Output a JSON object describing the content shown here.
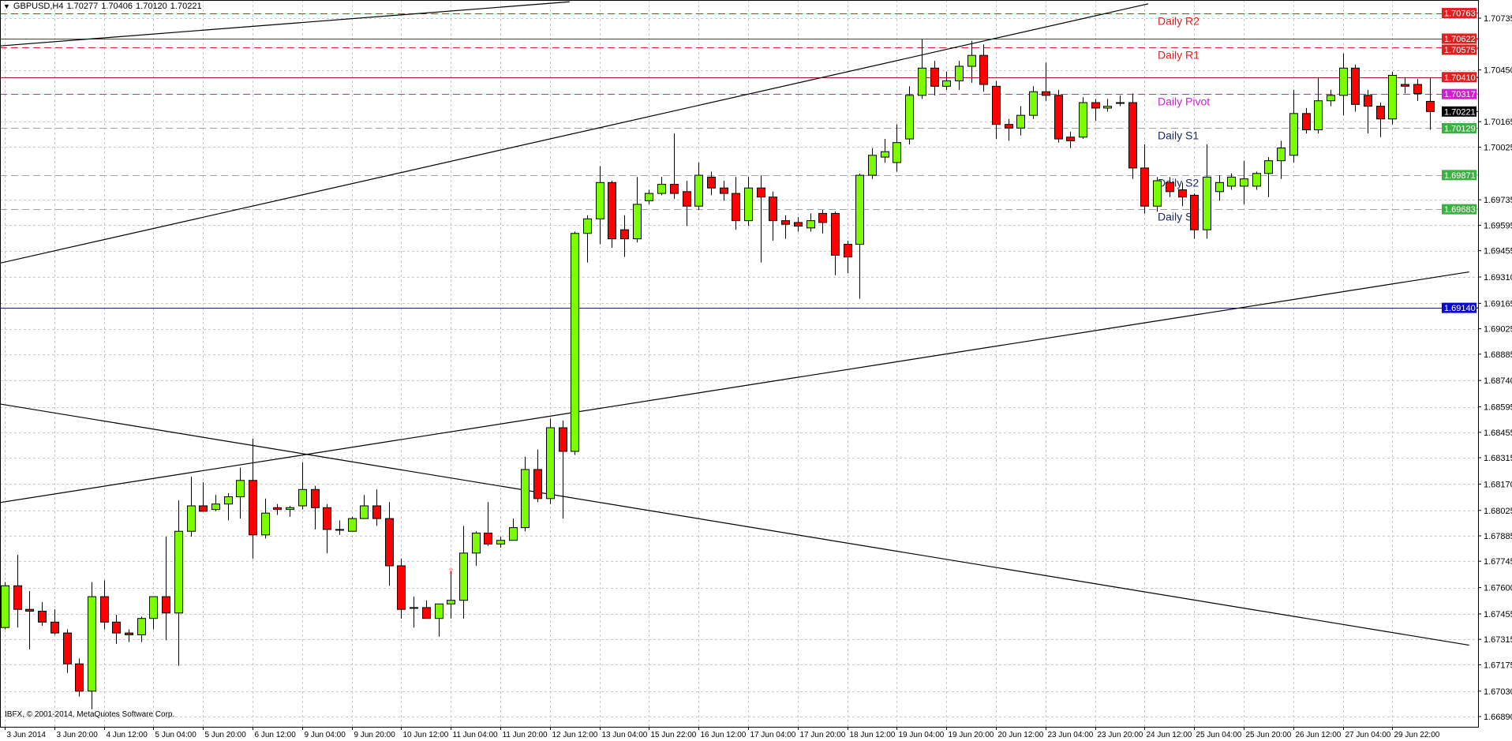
{
  "header": {
    "menu_icon": "triangle-down-icon",
    "symbol": "GBPUSD,H4",
    "open": "1.70277",
    "high": "1.70406",
    "low": "1.70120",
    "close": "1.70221"
  },
  "copyright": "IBFX, © 2001-2014, MetaQuotes Software Corp.",
  "colors": {
    "bull": "#7cfc00",
    "bear": "#ff0000",
    "resistance": "#e02020",
    "pivot": "#d020d0",
    "support_text": "#1a2a6c",
    "support_tag": "#3cb043",
    "blue_level": "#0a0ac8",
    "grid": "#c8c8c8"
  },
  "chart_data": {
    "type": "candlestick",
    "symbol": "GBPUSD",
    "timeframe": "H4",
    "ylim": [
      1.6684,
      1.7083
    ],
    "grid": true,
    "y_ticks": [
      "1.70735",
      "1.70450",
      "1.70165",
      "1.70025",
      "1.69735",
      "1.69595",
      "1.69455",
      "1.69310",
      "1.69165",
      "1.69025",
      "1.68885",
      "1.68740",
      "1.68595",
      "1.68455",
      "1.68315",
      "1.68170",
      "1.68025",
      "1.67885",
      "1.67745",
      "1.67600",
      "1.67455",
      "1.67315",
      "1.67175",
      "1.67030",
      "1.66890"
    ],
    "x_ticks": [
      "3 Jun 2014",
      "3 Jun 20:00",
      "4 Jun 12:00",
      "5 Jun 04:00",
      "5 Jun 20:00",
      "6 Jun 12:00",
      "9 Jun 04:00",
      "9 Jun 20:00",
      "10 Jun 12:00",
      "11 Jun 04:00",
      "11 Jun 20:00",
      "12 Jun 12:00",
      "13 Jun 04:00",
      "15 Jun 22:00",
      "16 Jun 12:00",
      "17 Jun 04:00",
      "17 Jun 20:00",
      "18 Jun 12:00",
      "19 Jun 04:00",
      "19 Jun 20:00",
      "20 Jun 12:00",
      "23 Jun 04:00",
      "23 Jun 20:00",
      "24 Jun 12:00",
      "25 Jun 04:00",
      "25 Jun 20:00",
      "26 Jun 12:00",
      "27 Jun 04:00",
      "29 Jun 22:00"
    ],
    "ohlc_fields": [
      "open",
      "high",
      "low",
      "close"
    ],
    "ohlc": [
      [
        1.6738,
        1.6763,
        1.6737,
        1.6761
      ],
      [
        1.6761,
        1.6778,
        1.6738,
        1.6748
      ],
      [
        1.6748,
        1.6758,
        1.6726,
        1.6747
      ],
      [
        1.6747,
        1.6752,
        1.6739,
        1.6741
      ],
      [
        1.6741,
        1.6748,
        1.6734,
        1.6735
      ],
      [
        1.6735,
        1.6737,
        1.6713,
        1.6718
      ],
      [
        1.6718,
        1.6721,
        1.67,
        1.6703
      ],
      [
        1.6703,
        1.6763,
        1.6693,
        1.6755
      ],
      [
        1.6755,
        1.6764,
        1.6737,
        1.6741
      ],
      [
        1.6741,
        1.6745,
        1.6729,
        1.6735
      ],
      [
        1.6735,
        1.6737,
        1.673,
        1.6734
      ],
      [
        1.6734,
        1.6744,
        1.673,
        1.6743
      ],
      [
        1.6743,
        1.6755,
        1.6737,
        1.6755
      ],
      [
        1.6755,
        1.6788,
        1.6731,
        1.6746
      ],
      [
        1.6746,
        1.6808,
        1.6717,
        1.6791
      ],
      [
        1.6791,
        1.6821,
        1.6788,
        1.6805
      ],
      [
        1.6805,
        1.6818,
        1.6802,
        1.6802
      ],
      [
        1.6803,
        1.6811,
        1.6802,
        1.6806
      ],
      [
        1.6806,
        1.6812,
        1.6797,
        1.681
      ],
      [
        1.681,
        1.6826,
        1.6798,
        1.6819
      ],
      [
        1.6819,
        1.6842,
        1.6776,
        1.6789
      ],
      [
        1.6789,
        1.6809,
        1.6787,
        1.6801
      ],
      [
        1.6804,
        1.6806,
        1.68,
        1.6803
      ],
      [
        1.6803,
        1.6805,
        1.6799,
        1.6804
      ],
      [
        1.6805,
        1.6829,
        1.6803,
        1.6814
      ],
      [
        1.6814,
        1.6816,
        1.6792,
        1.6804
      ],
      [
        1.6804,
        1.6806,
        1.6779,
        1.6792
      ],
      [
        1.6792,
        1.6797,
        1.6789,
        1.6792
      ],
      [
        1.6791,
        1.6799,
        1.6791,
        1.6798
      ],
      [
        1.6798,
        1.6811,
        1.6798,
        1.6805
      ],
      [
        1.6805,
        1.6814,
        1.6794,
        1.6798
      ],
      [
        1.6798,
        1.6807,
        1.6761,
        1.6772
      ],
      [
        1.6772,
        1.6776,
        1.6743,
        1.6748
      ],
      [
        1.6749,
        1.6755,
        1.6738,
        1.6749
      ],
      [
        1.6749,
        1.6753,
        1.6743,
        1.6743
      ],
      [
        1.6743,
        1.6751,
        1.6733,
        1.6751
      ],
      [
        1.6751,
        1.6769,
        1.6743,
        1.6753
      ],
      [
        1.6753,
        1.6794,
        1.6743,
        1.6779
      ],
      [
        1.6779,
        1.6791,
        1.6772,
        1.679
      ],
      [
        1.679,
        1.6807,
        1.6783,
        1.6784
      ],
      [
        1.6784,
        1.6788,
        1.6782,
        1.6786
      ],
      [
        1.6786,
        1.6798,
        1.6786,
        1.6793
      ],
      [
        1.6793,
        1.6832,
        1.6791,
        1.6825
      ],
      [
        1.6825,
        1.6836,
        1.6807,
        1.6809
      ],
      [
        1.6809,
        1.6853,
        1.6806,
        1.6848
      ],
      [
        1.6848,
        1.6852,
        1.6798,
        1.6835
      ],
      [
        1.6835,
        1.6956,
        1.6833,
        1.6955
      ],
      [
        1.6955,
        1.6965,
        1.6939,
        1.6963
      ],
      [
        1.6963,
        1.6992,
        1.6949,
        1.6983
      ],
      [
        1.6983,
        1.6984,
        1.6947,
        1.6952
      ],
      [
        1.6957,
        1.6965,
        1.6942,
        1.6952
      ],
      [
        1.6952,
        1.6986,
        1.695,
        1.6971
      ],
      [
        1.6973,
        1.6979,
        1.6971,
        1.6977
      ],
      [
        1.6977,
        1.6986,
        1.6976,
        1.6982
      ],
      [
        1.6982,
        1.701,
        1.6974,
        1.6977
      ],
      [
        1.6978,
        1.6984,
        1.6959,
        1.697
      ],
      [
        1.697,
        1.6994,
        1.6968,
        1.6987
      ],
      [
        1.6986,
        1.6989,
        1.6976,
        1.698
      ],
      [
        1.698,
        1.6984,
        1.6973,
        1.6977
      ],
      [
        1.6977,
        1.6986,
        1.6957,
        1.6962
      ],
      [
        1.6962,
        1.6986,
        1.6959,
        1.698
      ],
      [
        1.698,
        1.6987,
        1.6939,
        1.6975
      ],
      [
        1.6975,
        1.6978,
        1.6951,
        1.6962
      ],
      [
        1.6962,
        1.6965,
        1.6952,
        1.696
      ],
      [
        1.6961,
        1.6964,
        1.6956,
        1.6959
      ],
      [
        1.6958,
        1.6966,
        1.6956,
        1.6962
      ],
      [
        1.6966,
        1.6968,
        1.6955,
        1.6961
      ],
      [
        1.6966,
        1.6967,
        1.6932,
        1.6943
      ],
      [
        1.6949,
        1.6951,
        1.6933,
        1.6942
      ],
      [
        1.6949,
        1.6988,
        1.6919,
        1.6987
      ],
      [
        1.6987,
        1.7002,
        1.6985,
        1.6998
      ],
      [
        1.6997,
        1.7007,
        1.6994,
        1.7
      ],
      [
        1.6994,
        1.7015,
        1.6989,
        1.7005
      ],
      [
        1.7007,
        1.7036,
        1.7004,
        1.7031
      ],
      [
        1.7031,
        1.7062,
        1.7029,
        1.7046
      ],
      [
        1.7046,
        1.705,
        1.7031,
        1.7036
      ],
      [
        1.7036,
        1.7044,
        1.7034,
        1.7039
      ],
      [
        1.7039,
        1.705,
        1.7034,
        1.7047
      ],
      [
        1.7047,
        1.7061,
        1.7038,
        1.7053
      ],
      [
        1.7053,
        1.7059,
        1.7033,
        1.7037
      ],
      [
        1.7036,
        1.7039,
        1.7007,
        1.7015
      ],
      [
        1.7015,
        1.7018,
        1.7006,
        1.7013
      ],
      [
        1.7013,
        1.7025,
        1.7009,
        1.702
      ],
      [
        1.702,
        1.7036,
        1.7018,
        1.7033
      ],
      [
        1.7033,
        1.7049,
        1.7028,
        1.7031
      ],
      [
        1.7031,
        1.7034,
        1.7005,
        1.7007
      ],
      [
        1.7008,
        1.7011,
        1.7002,
        1.7006
      ],
      [
        1.7008,
        1.703,
        1.7007,
        1.7027
      ],
      [
        1.7027,
        1.7029,
        1.7017,
        1.7024
      ],
      [
        1.7024,
        1.7029,
        1.7022,
        1.7025
      ],
      [
        1.7027,
        1.7031,
        1.7025,
        1.7027
      ],
      [
        1.7027,
        1.7032,
        1.6985,
        1.6991
      ],
      [
        1.6991,
        1.7004,
        1.6966,
        1.697
      ],
      [
        1.697,
        1.6986,
        1.6967,
        1.6984
      ],
      [
        1.6983,
        1.6986,
        1.6975,
        1.6978
      ],
      [
        1.6979,
        1.6983,
        1.697,
        1.6975
      ],
      [
        1.6976,
        1.6977,
        1.6952,
        1.6957
      ],
      [
        1.6957,
        1.7004,
        1.6952,
        1.6986
      ],
      [
        1.6978,
        1.6987,
        1.6973,
        1.6983
      ],
      [
        1.6981,
        1.6988,
        1.6979,
        1.6986
      ],
      [
        1.6981,
        1.6995,
        1.6971,
        1.6985
      ],
      [
        1.6981,
        1.6989,
        1.6979,
        1.6988
      ],
      [
        1.6988,
        1.6997,
        1.6975,
        1.6995
      ],
      [
        1.6995,
        1.7006,
        1.6985,
        1.7002
      ],
      [
        1.6998,
        1.7034,
        1.6994,
        1.7021
      ],
      [
        1.7021,
        1.7024,
        1.701,
        1.7012
      ],
      [
        1.7012,
        1.7041,
        1.701,
        1.7028
      ],
      [
        1.7028,
        1.7034,
        1.7025,
        1.7031
      ],
      [
        1.7031,
        1.7054,
        1.702,
        1.7046
      ],
      [
        1.7046,
        1.7048,
        1.7022,
        1.7026
      ],
      [
        1.7031,
        1.7034,
        1.701,
        1.7025
      ],
      [
        1.7025,
        1.7027,
        1.7008,
        1.7018
      ],
      [
        1.7018,
        1.7044,
        1.7015,
        1.7042
      ],
      [
        1.7037,
        1.7041,
        1.7032,
        1.7036
      ],
      [
        1.7037,
        1.704,
        1.7028,
        1.7032
      ],
      [
        1.70277,
        1.70406,
        1.7012,
        1.70221
      ]
    ],
    "levels": [
      {
        "label": "Daily R2",
        "price": "1.70763",
        "style": "dashed",
        "role": "resistance"
      },
      {
        "label": "",
        "price": "1.70622",
        "style": "solid",
        "role": "resistance"
      },
      {
        "label": "Daily R1",
        "price": "1.70575",
        "style": "dashed",
        "role": "resistance"
      },
      {
        "label": "",
        "price": "1.70410",
        "style": "solid",
        "role": "resistance"
      },
      {
        "label": "Daily Pivot",
        "price": "1.70317",
        "style": "dashed",
        "role": "pivot"
      },
      {
        "label": "Daily S1",
        "price": "1.70129",
        "style": "dashed",
        "role": "support"
      },
      {
        "label": "Daily S2",
        "price": "1.69871",
        "style": "dashed",
        "role": "support"
      },
      {
        "label": "Daily S3",
        "price": "1.69683",
        "style": "dashed",
        "role": "support"
      },
      {
        "label": "",
        "price": "1.69140",
        "style": "solid",
        "role": "blue"
      }
    ],
    "current_price": "1.70221"
  }
}
